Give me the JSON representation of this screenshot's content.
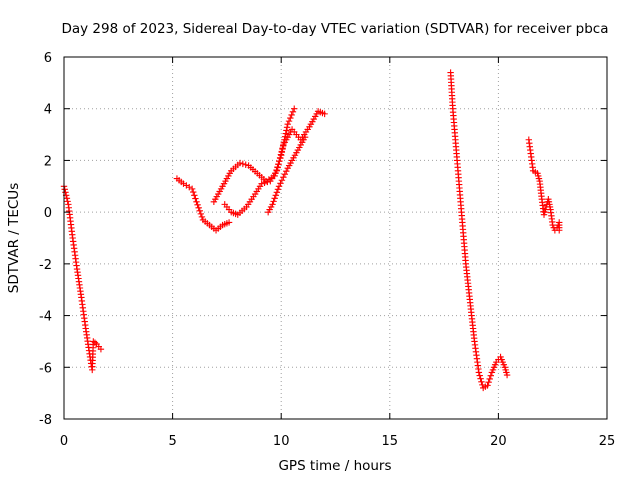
{
  "chart_data": {
    "type": "scatter",
    "title": "Day 298 of 2023, Sidereal Day-to-day VTEC variation (SDTVAR) for receiver pbca",
    "xlabel": "GPS time / hours",
    "ylabel": "SDTVAR / TECUs",
    "xlim": [
      0,
      25
    ],
    "ylim": [
      -8,
      6
    ],
    "xticks": [
      "0",
      "5",
      "10",
      "15",
      "20",
      "25"
    ],
    "yticks": [
      "-8",
      "-6",
      "-4",
      "-2",
      "0",
      "2",
      "4",
      "6"
    ],
    "grid": true,
    "color": "#ff0000",
    "marker": "plus",
    "series": [
      {
        "x": [
          0.0,
          0.2,
          0.4,
          0.6,
          0.8,
          1.0,
          1.2,
          1.3,
          1.35,
          1.5,
          1.7
        ],
        "y": [
          1.0,
          0.3,
          -1.0,
          -2.2,
          -3.3,
          -4.5,
          -5.6,
          -6.1,
          -5.0,
          -5.1,
          -5.3
        ]
      },
      {
        "x": [
          5.2,
          5.5,
          5.9,
          6.1,
          6.4,
          6.7,
          7.0,
          7.3,
          7.6
        ],
        "y": [
          1.3,
          1.1,
          0.9,
          0.4,
          -0.3,
          -0.5,
          -0.7,
          -0.5,
          -0.4
        ]
      },
      {
        "x": [
          6.9,
          7.3,
          7.7,
          8.1,
          8.5,
          8.9,
          9.3,
          9.7,
          10.0,
          10.3,
          10.6
        ],
        "y": [
          0.4,
          1.0,
          1.6,
          1.9,
          1.8,
          1.5,
          1.2,
          1.4,
          2.2,
          3.4,
          4.0
        ]
      },
      {
        "x": [
          7.4,
          7.7,
          8.0,
          8.4,
          8.8,
          9.1,
          9.5,
          9.8,
          10.1,
          10.5,
          10.9,
          11.3,
          11.7,
          12.0
        ],
        "y": [
          0.3,
          0.0,
          -0.1,
          0.2,
          0.7,
          1.1,
          1.2,
          1.6,
          2.6,
          3.2,
          2.8,
          3.3,
          3.9,
          3.8
        ]
      },
      {
        "x": [
          9.4,
          9.6,
          9.9,
          10.3,
          10.7,
          11.1
        ],
        "y": [
          0.0,
          0.3,
          1.0,
          1.7,
          2.3,
          2.9
        ]
      },
      {
        "x": [
          17.8,
          17.9,
          18.1,
          18.3,
          18.5,
          18.7,
          18.9,
          19.1,
          19.3,
          19.5,
          19.7,
          19.9,
          20.1,
          20.3,
          20.4
        ],
        "y": [
          5.4,
          4.0,
          2.0,
          0.0,
          -2.0,
          -3.5,
          -5.0,
          -6.2,
          -6.8,
          -6.7,
          -6.2,
          -5.8,
          -5.6,
          -6.0,
          -6.3
        ]
      },
      {
        "x": [
          21.4,
          21.6,
          21.8,
          21.9,
          22.0,
          22.1,
          22.2,
          22.3,
          22.4,
          22.5,
          22.6,
          22.7,
          22.8,
          22.8
        ],
        "y": [
          2.8,
          1.6,
          1.5,
          1.2,
          0.5,
          -0.1,
          0.2,
          0.5,
          0.1,
          -0.5,
          -0.7,
          -0.6,
          -0.4,
          -0.7
        ]
      }
    ]
  }
}
